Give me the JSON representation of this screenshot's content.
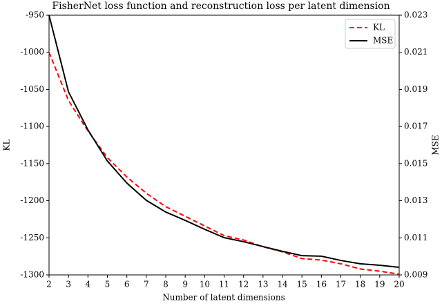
{
  "chart_data": {
    "type": "line",
    "title": "FisherNet loss function and reconstruction loss per latent dimension",
    "x_label": "Number of latent dimensions",
    "y_label": "KL",
    "y2_label": "MSE",
    "x": [
      2,
      3,
      4,
      5,
      6,
      7,
      8,
      9,
      10,
      11,
      12,
      13,
      14,
      15,
      16,
      17,
      18,
      19,
      20
    ],
    "xlim": [
      2,
      20
    ],
    "xticks": [
      2,
      3,
      4,
      5,
      6,
      7,
      8,
      9,
      10,
      11,
      12,
      13,
      14,
      15,
      16,
      17,
      18,
      19,
      20
    ],
    "ylim": [
      -1300,
      -950
    ],
    "yticks": [
      -1300,
      -1250,
      -1200,
      -1150,
      -1100,
      -1050,
      -1000,
      -950
    ],
    "y2lim": [
      0.009,
      0.023
    ],
    "y2ticks": [
      0.009,
      0.011,
      0.013,
      0.015,
      0.017,
      0.019,
      0.021,
      0.023
    ],
    "legend": "upper right",
    "series": [
      {
        "name": "KL",
        "color": "#ff0000",
        "dashed": true,
        "values": [
          -1000,
          -1065,
          -1106,
          -1142,
          -1168,
          -1190,
          -1208,
          -1221,
          -1234,
          -1247,
          -1253,
          -1262,
          -1269,
          -1278,
          -1280,
          -1285,
          -1292,
          -1295,
          -1299
        ]
      },
      {
        "name": "MSE",
        "color": "#000000",
        "axis": "y2",
        "values": [
          0.023,
          0.01887,
          0.01682,
          0.01514,
          0.01395,
          0.01302,
          0.01239,
          0.01194,
          0.01146,
          0.01101,
          0.01079,
          0.01053,
          0.01027,
          0.01004,
          0.01001,
          0.00978,
          0.0096,
          0.00952,
          0.00941
        ]
      }
    ]
  }
}
